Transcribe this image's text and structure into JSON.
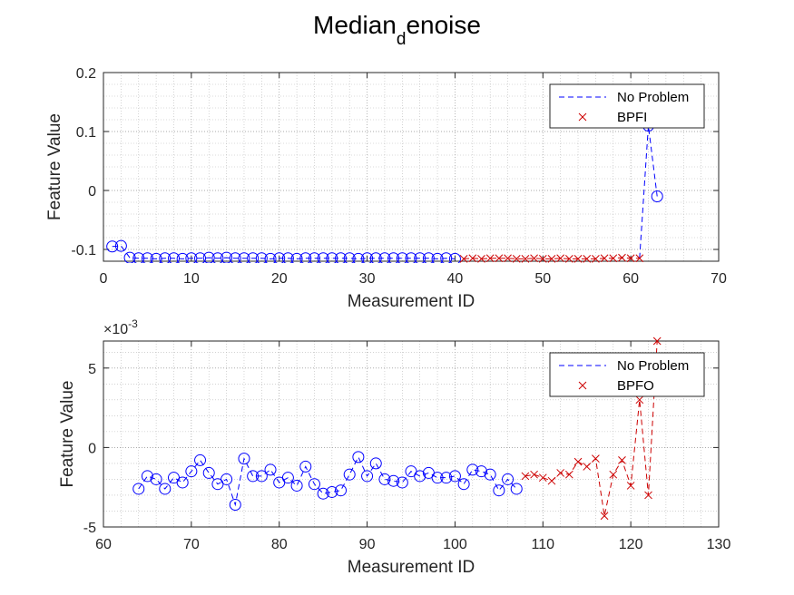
{
  "figure": {
    "title_main": "Median",
    "title_sub": "d",
    "title_tail": "enoise"
  },
  "colors": {
    "no_problem": "#0000ff",
    "fault": "#cc0000",
    "grid": "#b8b8b8",
    "axis": "#262626"
  },
  "chart_data": [
    {
      "type": "line",
      "xlabel": "Measurement ID",
      "ylabel": "Feature Value",
      "xlim": [
        0,
        70
      ],
      "ylim": [
        -0.12,
        0.2
      ],
      "xticks": [
        0,
        10,
        20,
        30,
        40,
        50,
        60,
        70
      ],
      "yticks": [
        -0.1,
        0,
        0.1,
        0.2
      ],
      "ytick_labels": [
        "-0.1",
        "0",
        "0.1",
        "0.2"
      ],
      "exponent_label": "",
      "grid": true,
      "minor_grid": true,
      "legend_position": "top-right",
      "legend": [
        "No Problem",
        "BPFI"
      ],
      "series": [
        {
          "name": "No Problem",
          "style": "dashed line with circle markers",
          "x": [
            1,
            2,
            3,
            4,
            5,
            6,
            7,
            8,
            9,
            10,
            11,
            12,
            13,
            14,
            15,
            16,
            17,
            18,
            19,
            20,
            21,
            22,
            23,
            24,
            25,
            26,
            27,
            28,
            29,
            30,
            31,
            32,
            33,
            34,
            35,
            36,
            37,
            38,
            39,
            40,
            62,
            63
          ],
          "y": [
            -0.095,
            -0.094,
            -0.114,
            -0.115,
            -0.115,
            -0.116,
            -0.115,
            -0.115,
            -0.116,
            -0.115,
            -0.115,
            -0.114,
            -0.115,
            -0.114,
            -0.115,
            -0.115,
            -0.115,
            -0.115,
            -0.116,
            -0.115,
            -0.115,
            -0.116,
            -0.115,
            -0.115,
            -0.115,
            -0.115,
            -0.115,
            -0.115,
            -0.116,
            -0.115,
            -0.115,
            -0.115,
            -0.115,
            -0.115,
            -0.115,
            -0.115,
            -0.115,
            -0.116,
            -0.115,
            -0.116,
            0.11,
            -0.01
          ]
        },
        {
          "name": "BPFI",
          "style": "dashed line with x markers",
          "x": [
            41,
            42,
            43,
            44,
            45,
            46,
            47,
            48,
            49,
            50,
            51,
            52,
            53,
            54,
            55,
            56,
            57,
            58,
            59,
            60,
            61
          ],
          "y": [
            -0.116,
            -0.115,
            -0.116,
            -0.115,
            -0.115,
            -0.115,
            -0.116,
            -0.116,
            -0.115,
            -0.116,
            -0.116,
            -0.115,
            -0.116,
            -0.116,
            -0.116,
            -0.116,
            -0.115,
            -0.115,
            -0.114,
            -0.115,
            -0.115
          ]
        }
      ]
    },
    {
      "type": "line",
      "xlabel": "Measurement ID",
      "ylabel": "Feature Value",
      "xlim": [
        60,
        130
      ],
      "ylim": [
        -0.005,
        0.0067
      ],
      "xticks": [
        60,
        70,
        80,
        90,
        100,
        110,
        120,
        130
      ],
      "yticks": [
        -0.005,
        0,
        0.005
      ],
      "ytick_labels": [
        "-5",
        "0",
        "5"
      ],
      "exponent_label": "×10^-3",
      "exponent_base": "×10",
      "exponent_power": "-3",
      "grid": true,
      "minor_grid": true,
      "legend_position": "top-right",
      "legend": [
        "No Problem",
        "BPFO"
      ],
      "series": [
        {
          "name": "No Problem",
          "style": "dashed line with circle markers",
          "x": [
            64,
            65,
            66,
            67,
            68,
            69,
            70,
            71,
            72,
            73,
            74,
            75,
            76,
            77,
            78,
            79,
            80,
            81,
            82,
            83,
            84,
            85,
            86,
            87,
            88,
            89,
            90,
            91,
            92,
            93,
            94,
            95,
            96,
            97,
            98,
            99,
            100,
            101,
            102,
            103,
            104,
            105,
            106,
            107
          ],
          "y": [
            -0.0026,
            -0.0018,
            -0.002,
            -0.0026,
            -0.0019,
            -0.0022,
            -0.0015,
            -0.0008,
            -0.0016,
            -0.0023,
            -0.002,
            -0.0036,
            -0.0007,
            -0.0018,
            -0.0018,
            -0.0014,
            -0.0022,
            -0.0019,
            -0.0024,
            -0.0012,
            -0.0023,
            -0.0029,
            -0.0028,
            -0.0027,
            -0.0017,
            -0.0006,
            -0.0018,
            -0.001,
            -0.002,
            -0.0021,
            -0.0022,
            -0.0015,
            -0.0018,
            -0.0016,
            -0.0019,
            -0.0019,
            -0.0018,
            -0.0023,
            -0.0014,
            -0.0015,
            -0.0017,
            -0.0027,
            -0.002,
            -0.0026
          ]
        },
        {
          "name": "BPFO",
          "style": "dashed line with x markers",
          "x": [
            108,
            109,
            110,
            111,
            112,
            113,
            114,
            115,
            116,
            117,
            118,
            119,
            120,
            121,
            122,
            123
          ],
          "y": [
            -0.0018,
            -0.0017,
            -0.0019,
            -0.0021,
            -0.0016,
            -0.0017,
            -0.0009,
            -0.0012,
            -0.0007,
            -0.0043,
            -0.0017,
            -0.0008,
            -0.0024,
            0.003,
            -0.003,
            0.0067
          ]
        }
      ]
    }
  ]
}
